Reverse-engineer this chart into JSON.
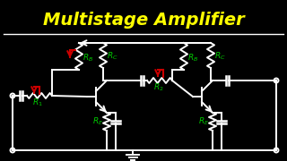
{
  "title": "Multistage Amplifier",
  "title_color": "#FFFF00",
  "bg_color": "#000000",
  "circuit_color": "#FFFFFF",
  "label_color": "#00CC00",
  "red_color": "#CC0000",
  "title_fontsize": 14,
  "label_fontsize": 6.5
}
